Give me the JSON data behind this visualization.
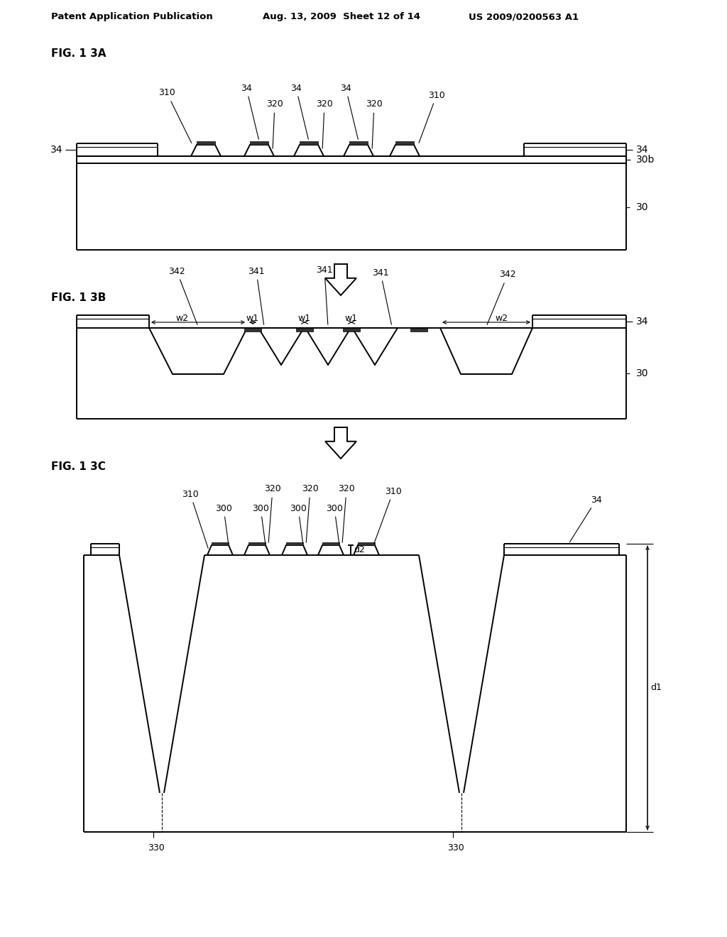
{
  "background_color": "#ffffff",
  "header_left": "Patent Application Publication",
  "header_mid": "Aug. 13, 2009  Sheet 12 of 14",
  "header_right": "US 2009/0200563 A1",
  "fig_labels": [
    "FIG. 1 3A",
    "FIG. 1 3B",
    "FIG. 1 3C"
  ],
  "line_color": "#000000",
  "lw": 1.4,
  "tlw": 0.8
}
